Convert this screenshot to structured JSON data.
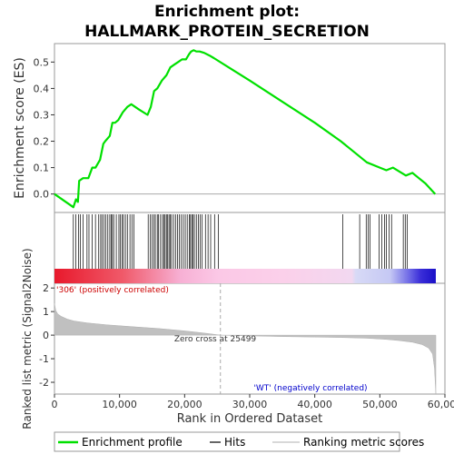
{
  "title_line1": "Enrichment plot:",
  "title_line2": "HALLMARK_PROTEIN_SECRETION",
  "chart_data": {
    "type": "line",
    "es_panel": {
      "ylabel": "Enrichment score (ES)",
      "ylim": [
        -0.07,
        0.57
      ],
      "yticks": [
        "0.0",
        "0.1",
        "0.2",
        "0.3",
        "0.4",
        "0.5"
      ],
      "ytick_values": [
        0.0,
        0.1,
        0.2,
        0.3,
        0.4,
        0.5
      ],
      "series": [
        {
          "name": "Enrichment profile",
          "color": "#00e000",
          "x": [
            0,
            2900,
            3300,
            3600,
            3800,
            4400,
            5200,
            5800,
            6300,
            7000,
            7500,
            7800,
            8500,
            8900,
            9300,
            9800,
            10500,
            11200,
            11800,
            13000,
            14300,
            14800,
            15300,
            15800,
            16500,
            17200,
            17800,
            18400,
            19000,
            19600,
            20200,
            20700,
            21000,
            21400,
            21800,
            22300,
            23000,
            23800,
            24500,
            30000,
            35000,
            40000,
            44000,
            48000,
            50000,
            51000,
            52000,
            54000,
            55000,
            56000,
            57000,
            58500
          ],
          "y": [
            0.0,
            -0.05,
            -0.02,
            -0.03,
            0.05,
            0.06,
            0.06,
            0.1,
            0.1,
            0.13,
            0.19,
            0.2,
            0.22,
            0.27,
            0.27,
            0.28,
            0.31,
            0.33,
            0.34,
            0.32,
            0.3,
            0.33,
            0.39,
            0.4,
            0.43,
            0.45,
            0.48,
            0.49,
            0.5,
            0.51,
            0.51,
            0.53,
            0.54,
            0.545,
            0.54,
            0.54,
            0.535,
            0.525,
            0.515,
            0.43,
            0.35,
            0.27,
            0.2,
            0.12,
            0.1,
            0.09,
            0.1,
            0.07,
            0.08,
            0.06,
            0.04,
            0.0
          ]
        }
      ]
    },
    "hits_panel": {
      "legend": "Hits",
      "positions": [
        2900,
        3300,
        3700,
        4000,
        4400,
        5000,
        5300,
        5800,
        6300,
        6800,
        7100,
        7300,
        7600,
        7900,
        8200,
        8500,
        8700,
        8900,
        9100,
        9500,
        9900,
        10100,
        10400,
        10600,
        10900,
        11200,
        11600,
        11900,
        12200,
        14400,
        14700,
        15000,
        15300,
        15500,
        15800,
        16000,
        16300,
        16600,
        16800,
        17000,
        17200,
        17400,
        17600,
        17800,
        18000,
        18300,
        18600,
        18900,
        19200,
        19500,
        19800,
        20100,
        20400,
        20700,
        20900,
        21100,
        21300,
        21500,
        21800,
        22100,
        22400,
        22700,
        23200,
        23600,
        24000,
        24600,
        25200,
        44300,
        46900,
        47900,
        48200,
        48500,
        49900,
        50300,
        50700,
        51000,
        51400,
        51800,
        53600,
        53900,
        54200
      ]
    },
    "gradient_bar": {
      "positive_label": "'306' (positively correlated)",
      "negative_label": "'WT' (negatively correlated)",
      "positive_color": "#e8192c",
      "negative_color": "#2b1fd9"
    },
    "metric_panel": {
      "ylabel": "Ranked list metric (Signal2Noise)",
      "ylim": [
        -2.5,
        2.2
      ],
      "yticks": [
        "-2",
        "-1",
        "0",
        "1",
        "2"
      ],
      "ytick_values": [
        -2,
        -1,
        0,
        1,
        2
      ],
      "zero_cross_label": "Zero cross at 25499",
      "zero_cross_rank": 25499,
      "series": [
        {
          "name": "Ranking metric scores",
          "color": "#c0c0c0",
          "x": [
            0,
            200,
            500,
            1000,
            2000,
            3000,
            5000,
            8000,
            12000,
            16000,
            20000,
            23000,
            25499,
            30000,
            35000,
            40000,
            44000,
            48000,
            51000,
            53000,
            55000,
            56500,
            57500,
            58100,
            58400,
            58600
          ],
          "y": [
            1.35,
            1.05,
            0.9,
            0.8,
            0.68,
            0.6,
            0.52,
            0.44,
            0.36,
            0.28,
            0.18,
            0.09,
            0.0,
            -0.03,
            -0.06,
            -0.08,
            -0.1,
            -0.13,
            -0.18,
            -0.23,
            -0.3,
            -0.4,
            -0.55,
            -0.8,
            -1.4,
            -2.5
          ]
        }
      ]
    },
    "x_axis": {
      "xlabel": "Rank in Ordered Dataset",
      "xlim": [
        0,
        60000
      ],
      "xticks": [
        "0",
        "10,000",
        "20,000",
        "30,000",
        "40,000",
        "50,000",
        "60,000"
      ],
      "xtick_values": [
        0,
        10000,
        20000,
        30000,
        40000,
        50000,
        60000
      ],
      "dataset_size": 58600
    }
  },
  "legend": {
    "items": [
      {
        "label": "Enrichment profile",
        "color": "#00e000"
      },
      {
        "label": "Hits",
        "color": "#000000"
      },
      {
        "label": "Ranking metric scores",
        "color": "#c0c0c0"
      }
    ]
  }
}
